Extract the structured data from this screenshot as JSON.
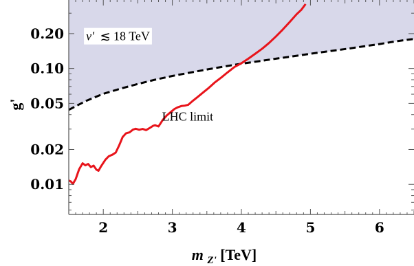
{
  "chart_data": {
    "type": "line",
    "title": "",
    "xlabel": {
      "main": "m",
      "subscript": "Z'",
      "unit": "[TeV]"
    },
    "ylabel": "g'",
    "xlim": [
      1.5,
      6.5
    ],
    "ylim": [
      0.0055,
      0.39
    ],
    "yscale": "log",
    "grid": false,
    "legend": "none",
    "x_ticks": [
      {
        "value": 2,
        "label": "2"
      },
      {
        "value": 3,
        "label": "3"
      },
      {
        "value": 4,
        "label": "4"
      },
      {
        "value": 5,
        "label": "5"
      },
      {
        "value": 6,
        "label": "6"
      }
    ],
    "y_ticks": [
      {
        "value": 0.01,
        "label": "0.01"
      },
      {
        "value": 0.02,
        "label": "0.02"
      },
      {
        "value": 0.05,
        "label": "0.05"
      },
      {
        "value": 0.1,
        "label": "0.10"
      },
      {
        "value": 0.2,
        "label": "0.20"
      }
    ],
    "series": [
      {
        "name": "LHC limit",
        "style": "solid",
        "color": "#e8141b",
        "points": [
          [
            1.5,
            0.0108
          ],
          [
            1.53,
            0.0106
          ],
          [
            1.56,
            0.0101
          ],
          [
            1.6,
            0.0111
          ],
          [
            1.65,
            0.0135
          ],
          [
            1.7,
            0.0152
          ],
          [
            1.74,
            0.0146
          ],
          [
            1.78,
            0.015
          ],
          [
            1.82,
            0.0141
          ],
          [
            1.86,
            0.0145
          ],
          [
            1.9,
            0.0134
          ],
          [
            1.93,
            0.0131
          ],
          [
            1.97,
            0.0144
          ],
          [
            2.03,
            0.0163
          ],
          [
            2.08,
            0.0175
          ],
          [
            2.13,
            0.018
          ],
          [
            2.18,
            0.0188
          ],
          [
            2.23,
            0.0217
          ],
          [
            2.28,
            0.0256
          ],
          [
            2.33,
            0.0276
          ],
          [
            2.38,
            0.0281
          ],
          [
            2.43,
            0.0297
          ],
          [
            2.47,
            0.0302
          ],
          [
            2.52,
            0.0296
          ],
          [
            2.57,
            0.0301
          ],
          [
            2.62,
            0.0294
          ],
          [
            2.67,
            0.0306
          ],
          [
            2.72,
            0.032
          ],
          [
            2.75,
            0.0324
          ],
          [
            2.8,
            0.0316
          ],
          [
            2.86,
            0.0359
          ],
          [
            2.92,
            0.0394
          ],
          [
            2.98,
            0.0422
          ],
          [
            3.03,
            0.0447
          ],
          [
            3.08,
            0.0463
          ],
          [
            3.13,
            0.0474
          ],
          [
            3.18,
            0.0478
          ],
          [
            3.23,
            0.0486
          ],
          [
            3.3,
            0.0528
          ],
          [
            3.37,
            0.057
          ],
          [
            3.45,
            0.0624
          ],
          [
            3.53,
            0.0682
          ],
          [
            3.62,
            0.0762
          ],
          [
            3.71,
            0.0837
          ],
          [
            3.8,
            0.0926
          ],
          [
            3.9,
            0.103
          ],
          [
            4.0,
            0.111
          ],
          [
            4.1,
            0.1215
          ],
          [
            4.2,
            0.134
          ],
          [
            4.3,
            0.148
          ],
          [
            4.4,
            0.166
          ],
          [
            4.5,
            0.189
          ],
          [
            4.6,
            0.217
          ],
          [
            4.7,
            0.252
          ],
          [
            4.8,
            0.294
          ],
          [
            4.87,
            0.322
          ],
          [
            4.93,
            0.36
          ]
        ]
      },
      {
        "name": "",
        "style": "dashed",
        "color": "#000000",
        "points": [
          [
            1.5,
            0.044
          ],
          [
            1.75,
            0.0525
          ],
          [
            2.0,
            0.0605
          ],
          [
            2.25,
            0.067
          ],
          [
            2.5,
            0.0735
          ],
          [
            2.75,
            0.08
          ],
          [
            3.0,
            0.0862
          ],
          [
            3.25,
            0.092
          ],
          [
            3.5,
            0.098
          ],
          [
            3.75,
            0.104
          ],
          [
            4.0,
            0.11
          ],
          [
            4.25,
            0.1155
          ],
          [
            4.5,
            0.1215
          ],
          [
            4.75,
            0.1275
          ],
          [
            5.0,
            0.134
          ],
          [
            5.25,
            0.1405
          ],
          [
            5.5,
            0.147
          ],
          [
            5.75,
            0.1545
          ],
          [
            6.0,
            0.1625
          ],
          [
            6.25,
            0.172
          ],
          [
            6.5,
            0.18
          ]
        ]
      }
    ],
    "shaded_region": {
      "color": "#d8d8ea",
      "bounded_below_by": "dashed"
    },
    "annotations": [
      {
        "text_v": "v'",
        "text_rest": "≲ 18 TeV",
        "x": 1.75,
        "y": 0.19,
        "boxed": true
      },
      {
        "text": "LHC limit",
        "x": 2.95,
        "y": 0.0385,
        "boxed": false
      }
    ]
  }
}
